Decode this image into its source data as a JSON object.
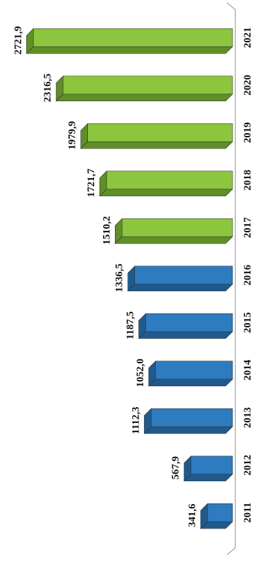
{
  "chart_data": {
    "type": "bar",
    "orientation": "horizontal-3d",
    "categories": [
      "2011",
      "2012",
      "2013",
      "2014",
      "2015",
      "2016",
      "2017",
      "2018",
      "2019",
      "2020",
      "2021"
    ],
    "values": [
      341.6,
      567.9,
      1112.3,
      1052.0,
      1187.5,
      1336.5,
      1510.2,
      1721.7,
      1979.9,
      2316.5,
      2721.9
    ],
    "value_labels": [
      "341,6",
      "567,9",
      "1112,3",
      "1052,0",
      "1187,5",
      "1336,5",
      "1510,2",
      "1721,7",
      "1979,9",
      "2316,5",
      "2721,9"
    ],
    "series_colors": [
      "#2e7bbf",
      "#2e7bbf",
      "#2e7bbf",
      "#2e7bbf",
      "#2e7bbf",
      "#2e7bbf",
      "#8cc63e",
      "#8cc63e",
      "#8cc63e",
      "#8cc63e",
      "#8cc63e"
    ],
    "colors": {
      "blue_face": "#2e7bbf",
      "blue_side": "#1f5a8f",
      "green_face": "#8cc63e",
      "green_side": "#5f8f26",
      "axis": "#888888"
    },
    "xlim": [
      0,
      2800
    ],
    "grid": false,
    "title": "",
    "xlabel": "",
    "ylabel": ""
  }
}
